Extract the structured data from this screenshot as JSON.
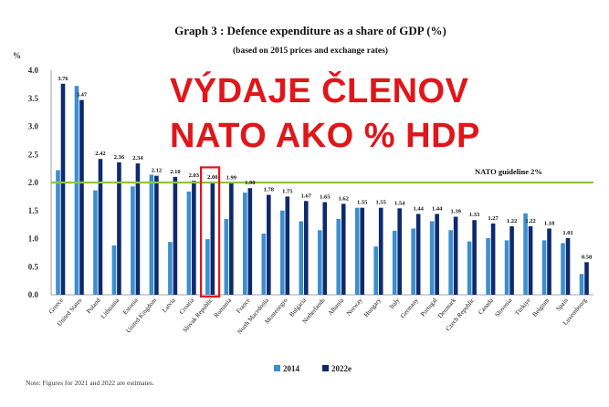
{
  "chart_data": {
    "type": "bar",
    "title": "Graph 3 : Defence expenditure as a share of GDP (%)",
    "subtitle": "(based on 2015 prices and exchange rates)",
    "ylabel": "%",
    "ylim": [
      0,
      4.0
    ],
    "yticks": [
      "0.0",
      "0.5",
      "1.0",
      "1.5",
      "2.0",
      "2.5",
      "3.0",
      "3.5",
      "4.0"
    ],
    "grid": false,
    "categories": [
      "Greece",
      "United States",
      "Poland",
      "Lithuania",
      "Estonia",
      "United Kingdom",
      "Latvia",
      "Croatia",
      "Slovak Republic",
      "Romania",
      "France",
      "North Macedonia",
      "Montenegro",
      "Bulgaria",
      "Netherlands",
      "Albania",
      "Norway",
      "Hungary",
      "Italy",
      "Germany",
      "Portugal",
      "Denmark",
      "Czech Republic",
      "Canada",
      "Slovenia",
      "Türkiye",
      "Belgium",
      "Spain",
      "Luxembourg"
    ],
    "series": [
      {
        "name": "2014",
        "color": "#3b8fcf",
        "values": [
          2.22,
          3.72,
          1.86,
          0.88,
          1.93,
          2.14,
          0.94,
          1.84,
          0.99,
          1.35,
          1.82,
          1.09,
          1.5,
          1.31,
          1.15,
          1.35,
          1.55,
          0.86,
          1.14,
          1.18,
          1.31,
          1.15,
          0.95,
          1.01,
          0.97,
          1.45,
          0.97,
          0.92,
          0.37
        ]
      },
      {
        "name": "2022e",
        "color": "#0e2a6e",
        "values": [
          3.76,
          3.47,
          2.42,
          2.36,
          2.34,
          2.12,
          2.1,
          2.03,
          2.0,
          1.99,
          1.9,
          1.78,
          1.75,
          1.67,
          1.65,
          1.62,
          1.55,
          1.55,
          1.54,
          1.44,
          1.44,
          1.39,
          1.33,
          1.27,
          1.22,
          1.22,
          1.18,
          1.01,
          0.58
        ]
      }
    ],
    "data_labels": [
      "3.76",
      "3.47",
      "2.42",
      "2.36",
      "2.34",
      "2.12",
      "2.10",
      "2.03",
      "2.00",
      "1.99",
      "1.90",
      "1.78",
      "1.75",
      "1.67",
      "1.65",
      "1.62",
      "1.55",
      "1.55",
      "1.54",
      "1.44",
      "1.44",
      "1.39",
      "1.33",
      "1.27",
      "1.22",
      "1.22",
      "1.18",
      "1.01",
      "0.58"
    ],
    "reference_line": {
      "label": "NATO guideline 2%",
      "value": 2.0,
      "color": "#8cc63f"
    },
    "highlight": {
      "category": "Slovak Republic",
      "color": "#e0161b"
    },
    "legend": {
      "position": "bottom"
    }
  },
  "overlay": {
    "line1": "VÝDAJE ČLENOV",
    "line2": "NATO AKO % HDP"
  },
  "note": "Note: Figures for 2021 and 2022 are estimates."
}
